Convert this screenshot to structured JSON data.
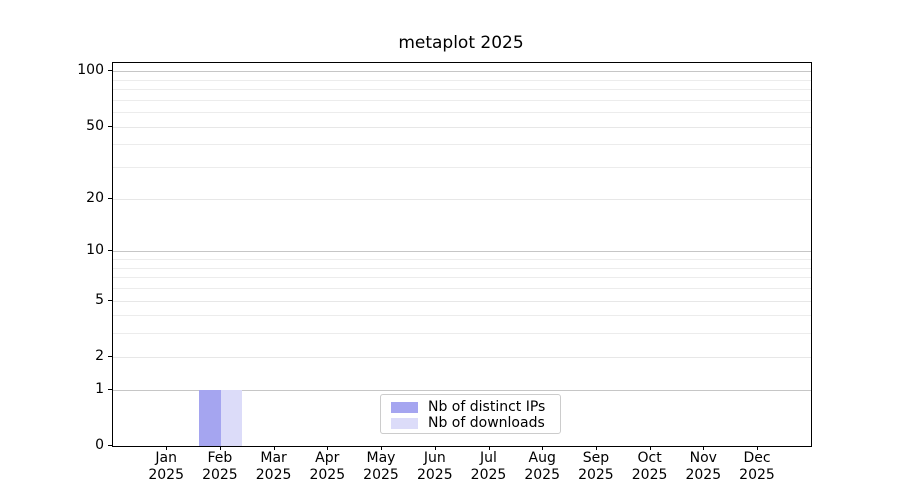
{
  "chart_data": {
    "type": "bar",
    "title": "metaplot 2025",
    "categories": [
      "Jan 2025",
      "Feb 2025",
      "Mar 2025",
      "Apr 2025",
      "May 2025",
      "Jun 2025",
      "Jul 2025",
      "Aug 2025",
      "Sep 2025",
      "Oct 2025",
      "Nov 2025",
      "Dec 2025"
    ],
    "series": [
      {
        "name": "Nb of distinct IPs",
        "color": "#a5a5f0",
        "values": [
          0,
          1,
          0,
          0,
          0,
          0,
          0,
          0,
          0,
          0,
          0,
          0
        ]
      },
      {
        "name": "Nb of downloads",
        "color": "#dcdcf9",
        "values": [
          0,
          1,
          0,
          0,
          0,
          0,
          0,
          0,
          0,
          0,
          0,
          0
        ]
      }
    ],
    "yscale": "log1p",
    "ylim": [
      0,
      110
    ],
    "yticks": [
      0,
      1,
      2,
      5,
      10,
      20,
      50,
      100
    ],
    "decade_yticks": [
      1,
      10,
      100
    ],
    "minor_yticks": [
      3,
      4,
      6,
      7,
      8,
      9,
      30,
      40,
      60,
      70,
      80,
      90
    ],
    "grid": true,
    "legend": {
      "position": "lower center",
      "entries": [
        "Nb of distinct IPs",
        "Nb of downloads"
      ]
    }
  },
  "colors": {
    "background": "#ffffff",
    "spine": "#000000",
    "grid_decade": "#c6c6c6",
    "grid_labeled": "#e7e7e7",
    "grid_minor": "#ececec",
    "legend_border": "#cccccc",
    "text": "#000000"
  }
}
